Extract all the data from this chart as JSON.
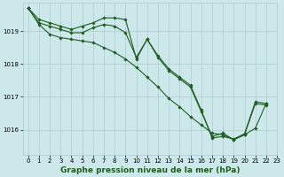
{
  "title": "Graphe pression niveau de la mer (hPa)",
  "background_color": "#cce8ea",
  "grid_color": "#aacccc",
  "line_color": "#1e5e1e",
  "xlim": [
    -0.5,
    23
  ],
  "ylim": [
    1015.25,
    1019.85
  ],
  "yticks": [
    1016,
    1017,
    1018,
    1019
  ],
  "xticks": [
    0,
    1,
    2,
    3,
    4,
    5,
    6,
    7,
    8,
    9,
    10,
    11,
    12,
    13,
    14,
    15,
    16,
    17,
    18,
    19,
    20,
    21,
    22,
    23
  ],
  "series": [
    [
      1019.7,
      1019.35,
      1019.25,
      1019.15,
      1019.05,
      1019.15,
      1019.25,
      1019.4,
      1019.4,
      1019.35,
      1018.15,
      1018.75,
      1018.25,
      1017.85,
      1017.6,
      1017.35,
      1016.6,
      1015.75,
      1015.8,
      1015.72,
      1015.88,
      1016.85,
      1016.8,
      null
    ],
    [
      1019.7,
      1019.25,
      1019.15,
      1019.05,
      1018.95,
      1018.95,
      1019.1,
      1019.2,
      1019.15,
      1018.95,
      1018.2,
      1018.75,
      1018.2,
      1017.8,
      1017.55,
      1017.3,
      1016.55,
      1015.8,
      1015.9,
      1015.7,
      1015.85,
      1016.8,
      1016.75,
      null
    ],
    [
      1019.7,
      1019.2,
      1018.9,
      1018.8,
      1018.75,
      1018.7,
      1018.65,
      1018.5,
      1018.35,
      1018.15,
      1017.9,
      1017.6,
      1017.3,
      1016.95,
      1016.7,
      1016.4,
      1016.15,
      1015.9,
      1015.85,
      1015.7,
      1015.85,
      1016.05,
      1016.8,
      null
    ]
  ],
  "title_fontsize": 6.5,
  "tick_fontsize": 5.0,
  "linewidth": 0.8,
  "markersize": 1.8
}
